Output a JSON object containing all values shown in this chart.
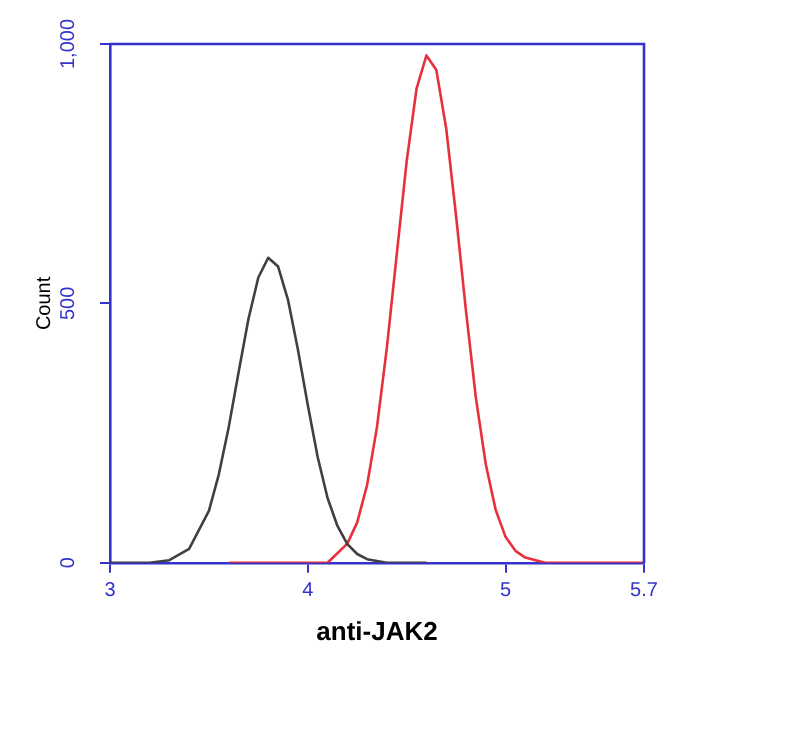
{
  "chart_data": {
    "type": "line",
    "xlabel": "anti-JAK2",
    "ylabel": "Count",
    "xlim": [
      3,
      5.7
    ],
    "xticks": [
      3,
      4,
      5,
      5.7
    ],
    "ylim": [
      0,
      1000
    ],
    "yticks": [
      0,
      500,
      {
        "value": 1000,
        "label": "1,000"
      }
    ],
    "grid": false,
    "legend": false,
    "marker": "none",
    "line_style": "solid",
    "series": [
      {
        "color": "#404040",
        "x": [
          3.0,
          3.2,
          3.3,
          3.4,
          3.5,
          3.55,
          3.6,
          3.65,
          3.7,
          3.75,
          3.8,
          3.85,
          3.9,
          3.95,
          4.0,
          4.05,
          4.1,
          4.15,
          4.2,
          4.25,
          4.3,
          4.4,
          4.6
        ],
        "values": [
          0,
          0,
          5,
          27,
          100,
          170,
          261,
          367,
          470,
          550,
          588,
          571,
          507,
          411,
          304,
          204,
          125,
          71,
          36,
          17,
          7,
          0,
          0
        ]
      },
      {
        "color": "#e8303a",
        "x": [
          3.6,
          4.1,
          4.2,
          4.25,
          4.3,
          4.35,
          4.4,
          4.45,
          4.5,
          4.55,
          4.6,
          4.65,
          4.7,
          4.75,
          4.8,
          4.85,
          4.9,
          4.95,
          5.0,
          5.05,
          5.1,
          5.2,
          5.7
        ],
        "values": [
          0,
          0,
          37,
          78,
          150,
          262,
          415,
          595,
          774,
          914,
          978,
          950,
          837,
          668,
          485,
          318,
          190,
          102,
          50,
          23,
          10,
          0,
          0
        ]
      }
    ]
  }
}
